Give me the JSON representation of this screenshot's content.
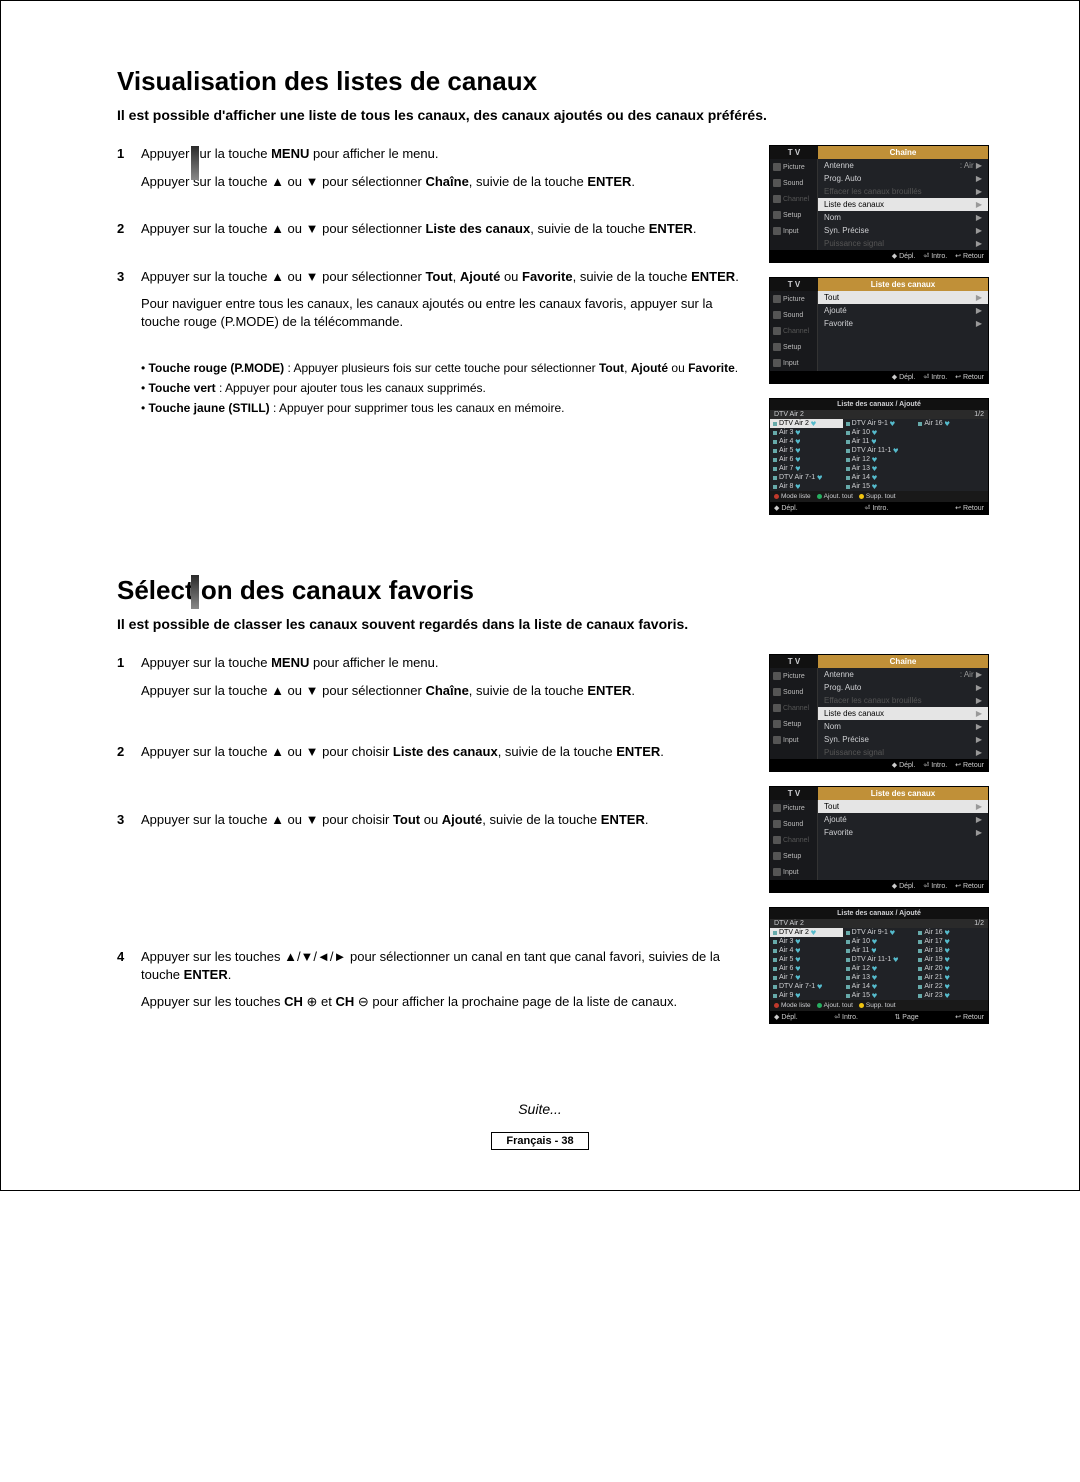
{
  "section1": {
    "title": "Visualisation des listes de canaux",
    "intro": "Il est possible d'afficher une liste de tous les canaux, des canaux ajoutés ou des canaux préférés.",
    "steps": [
      {
        "n": "1",
        "lines": [
          "Appuyer sur la touche <strong>MENU</strong> pour afficher le menu.",
          "Appuyer sur la touche ▲ ou ▼ pour sélectionner <strong>Chaîne</strong>, suivie de la touche <strong>ENTER</strong>."
        ]
      },
      {
        "n": "2",
        "lines": [
          "Appuyer sur la touche ▲ ou ▼ pour sélectionner <strong>Liste des canaux</strong>, suivie de la touche <strong>ENTER</strong>."
        ]
      },
      {
        "n": "3",
        "lines": [
          "Appuyer sur la touche ▲ ou ▼ pour sélectionner <strong>Tout</strong>, <strong>Ajouté</strong> ou <strong>Favorite</strong>, suivie de la touche <strong>ENTER</strong>.",
          "Pour naviguer entre tous les canaux, les canaux ajoutés ou entre les canaux favoris, appuyer sur la touche rouge (P.MODE) de la télécommande."
        ]
      }
    ],
    "notes": [
      "• <strong>Touche rouge (P.MODE)</strong> : Appuyer plusieurs fois sur cette touche pour sélectionner <strong>Tout</strong>, <strong>Ajouté</strong> ou <strong>Favorite</strong>.",
      "• <strong>Touche vert</strong> : Appuyer pour ajouter tous les canaux supprimés.",
      "• <strong>Touche jaune (STILL)</strong> : Appuyer pour supprimer tous les canaux en mémoire."
    ]
  },
  "section2": {
    "title": "Sélection des canaux favoris",
    "intro": "Il est possible de classer les canaux souvent regardés dans la liste de canaux favoris.",
    "steps": [
      {
        "n": "1",
        "lines": [
          "Appuyer sur la touche <strong>MENU</strong> pour afficher le menu.",
          "Appuyer sur la touche ▲ ou ▼ pour sélectionner <strong>Chaîne</strong>, suivie de la touche <strong>ENTER</strong>."
        ]
      },
      {
        "n": "2",
        "lines": [
          "Appuyer sur la touche ▲ ou ▼ pour choisir <strong>Liste des canaux</strong>, suivie de la touche <strong>ENTER</strong>."
        ]
      },
      {
        "n": "3",
        "lines": [
          "Appuyer sur la touche ▲ ou ▼ pour choisir <strong>Tout</strong> ou <strong>Ajouté</strong>, suivie de la touche <strong>ENTER</strong>."
        ]
      },
      {
        "n": "4",
        "lines": [
          "Appuyer sur les touches ▲/▼/◄/► pour sélectionner un canal en tant que canal favori, suivies de la touche <strong>ENTER</strong>.",
          "Appuyer sur les touches <strong>CH</strong> ⊕ et <strong>CH</strong> ⊖ pour afficher la prochaine page de la liste de canaux."
        ]
      }
    ]
  },
  "tvmenu": {
    "tv_label": "T V",
    "nav": [
      "Picture",
      "Sound",
      "Channel",
      "Setup",
      "Input"
    ],
    "chaine_title": "Chaîne",
    "liste_title": "Liste des canaux",
    "chaine_rows": [
      {
        "l": "Antenne",
        "r": ": Air"
      },
      {
        "l": "Prog. Auto",
        "r": ""
      },
      {
        "l": "Effacer les canaux brouillés",
        "r": "",
        "dim": true
      },
      {
        "l": "Liste des canaux",
        "r": "",
        "hl": true
      },
      {
        "l": "Nom",
        "r": ""
      },
      {
        "l": "Syn. Précise",
        "r": ""
      },
      {
        "l": "Puissance signal",
        "r": "",
        "dim": true
      }
    ],
    "liste_rows": [
      {
        "l": "Tout",
        "hl": true
      },
      {
        "l": "Ajouté"
      },
      {
        "l": "Favorite"
      }
    ],
    "footer": {
      "depl": "◆ Dépl.",
      "intro": "⏎ Intro.",
      "retour": "↩ Retour"
    }
  },
  "grid1": {
    "title": "Liste des canaux / Ajouté",
    "sub_left": "DTV Air 2",
    "sub_right": "1/2",
    "cols": [
      [
        "DTV Air 2",
        "Air 3",
        "Air 4",
        "Air 5",
        "Air 6",
        "Air 7",
        "DTV Air 7-1",
        "Air 8"
      ],
      [
        "DTV Air 9-1",
        "Air 10",
        "Air 11",
        "DTV Air 11-1",
        "Air 12",
        "Air 13",
        "Air 14",
        "Air 15"
      ],
      [
        "Air 16",
        "",
        "",
        "",
        "",
        "",
        "",
        ""
      ]
    ],
    "foot_labels": {
      "mode": "Mode liste",
      "ajout": "Ajout. tout",
      "supp": "Supp. tout"
    },
    "foot2": {
      "depl": "◆ Dépl.",
      "intro": "⏎ Intro.",
      "retour": "↩ Retour"
    }
  },
  "grid2": {
    "title": "Liste des canaux / Ajouté",
    "sub_left": "DTV Air 2",
    "sub_right": "1/2",
    "cols": [
      [
        "DTV Air 2",
        "Air 3",
        "Air 4",
        "Air 5",
        "Air 6",
        "Air 7",
        "DTV Air 7-1",
        "Air 9"
      ],
      [
        "DTV Air 9-1",
        "Air 10",
        "Air 11",
        "DTV Air 11-1",
        "Air 12",
        "Air 13",
        "Air 14",
        "Air 15"
      ],
      [
        "Air 16",
        "Air 17",
        "Air 18",
        "Air 19",
        "Air 20",
        "Air 21",
        "Air 22",
        "Air 23"
      ]
    ],
    "foot_labels": {
      "mode": "Mode liste",
      "ajout": "Ajout. tout",
      "supp": "Supp. tout"
    },
    "foot2": {
      "depl": "◆ Dépl.",
      "intro": "⏎ Intro.",
      "page": "⇅ Page",
      "retour": "↩ Retour"
    }
  },
  "suite": "Suite...",
  "page_footer": "Français - 38"
}
